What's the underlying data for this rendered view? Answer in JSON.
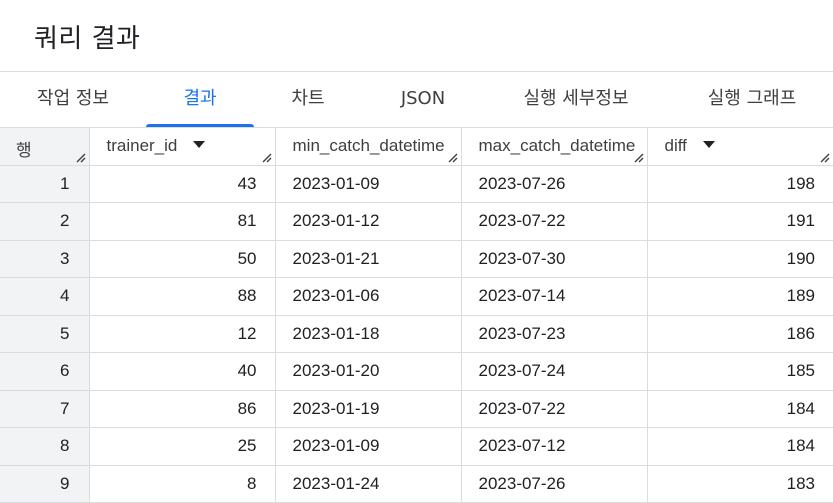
{
  "header": {
    "title": "쿼리 결과"
  },
  "tabs": [
    {
      "label": "작업 정보",
      "active": false
    },
    {
      "label": "결과",
      "active": true
    },
    {
      "label": "차트",
      "active": false
    },
    {
      "label": "JSON",
      "active": false
    },
    {
      "label": "실행 세부정보",
      "active": false
    },
    {
      "label": "실행 그래프",
      "active": false
    }
  ],
  "table": {
    "columns": [
      "행",
      "trainer_id",
      "min_catch_datetime",
      "max_catch_datetime",
      "diff"
    ],
    "rows": [
      [
        "1",
        "43",
        "2023-01-09",
        "2023-07-26",
        "198"
      ],
      [
        "2",
        "81",
        "2023-01-12",
        "2023-07-22",
        "191"
      ],
      [
        "3",
        "50",
        "2023-01-21",
        "2023-07-30",
        "190"
      ],
      [
        "4",
        "88",
        "2023-01-06",
        "2023-07-14",
        "189"
      ],
      [
        "5",
        "12",
        "2023-01-18",
        "2023-07-23",
        "186"
      ],
      [
        "6",
        "40",
        "2023-01-20",
        "2023-07-24",
        "185"
      ],
      [
        "7",
        "86",
        "2023-01-19",
        "2023-07-22",
        "184"
      ],
      [
        "8",
        "25",
        "2023-01-09",
        "2023-07-12",
        "184"
      ],
      [
        "9",
        "8",
        "2023-01-24",
        "2023-07-26",
        "183"
      ]
    ]
  },
  "colors": {
    "accent": "#1a73e8",
    "border": "#dadce0",
    "rownum_bg": "#f1f3f4"
  }
}
